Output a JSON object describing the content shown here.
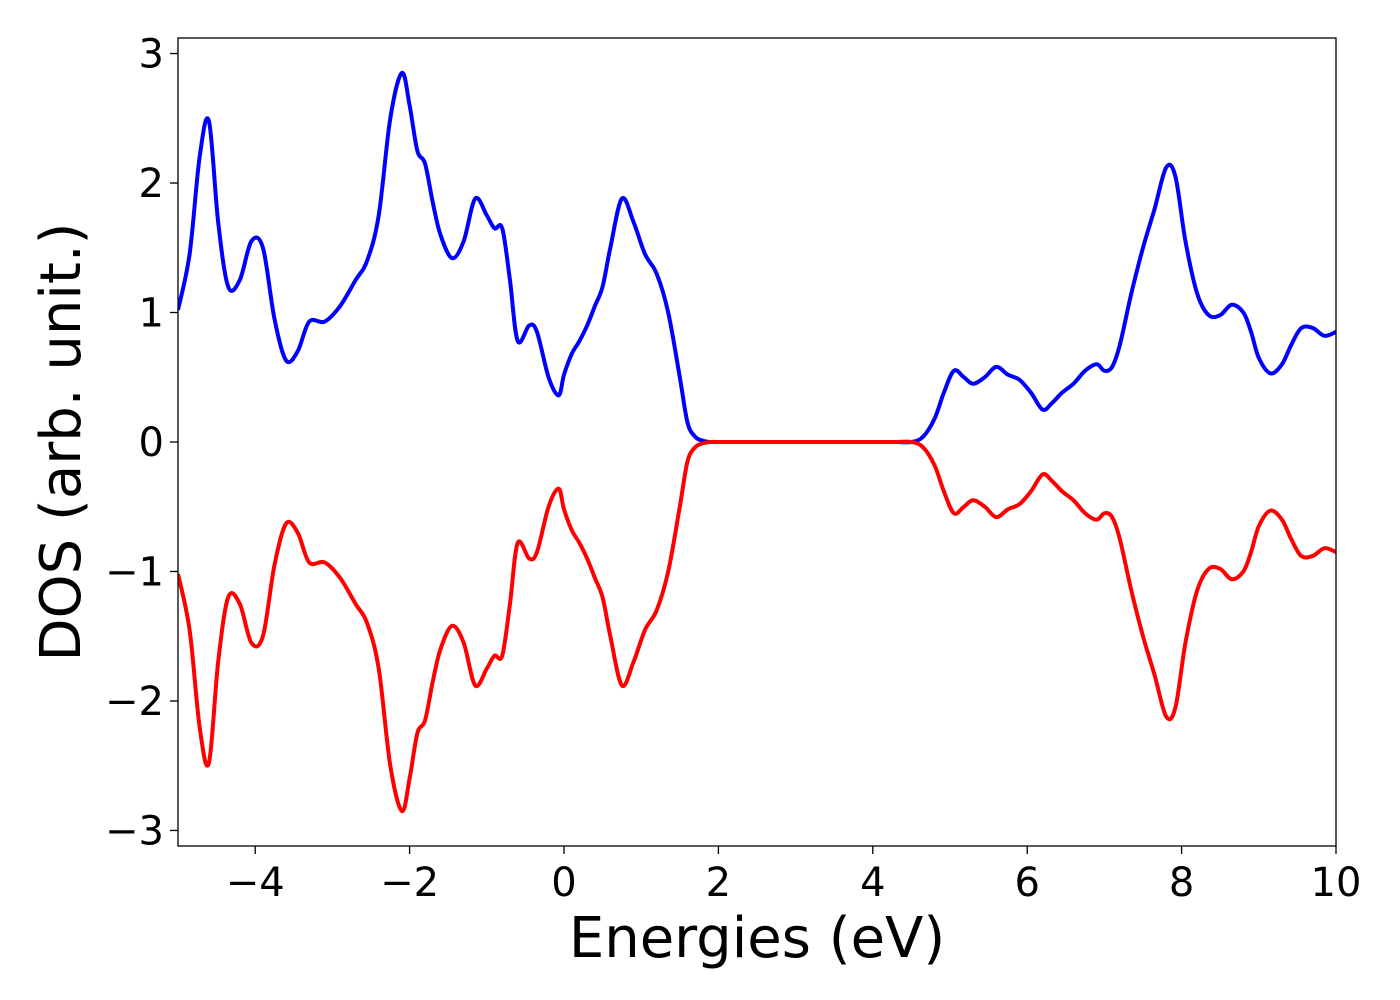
{
  "chart_data": {
    "type": "line",
    "title": "",
    "xlabel": "Energies (eV)",
    "ylabel": "DOS (arb. unit.)",
    "xlim": [
      -5,
      10
    ],
    "ylim": [
      -3.12,
      3.12
    ],
    "xticks": [
      -4,
      -2,
      0,
      2,
      4,
      6,
      8,
      10
    ],
    "xtick_labels": [
      "−4",
      "−2",
      "0",
      "2",
      "4",
      "6",
      "8",
      "10"
    ],
    "yticks": [
      -3,
      -2,
      -1,
      0,
      1,
      2,
      3
    ],
    "ytick_labels": [
      "−3",
      "−2",
      "−1",
      "0",
      "1",
      "2",
      "3"
    ],
    "grid": false,
    "legend": "none",
    "series": [
      {
        "color": "#0000ff",
        "x": [
          -5.0,
          -4.85,
          -4.72,
          -4.6,
          -4.48,
          -4.35,
          -4.2,
          -4.05,
          -3.9,
          -3.75,
          -3.6,
          -3.45,
          -3.3,
          -3.1,
          -2.9,
          -2.7,
          -2.55,
          -2.4,
          -2.25,
          -2.1,
          -2.0,
          -1.9,
          -1.8,
          -1.7,
          -1.6,
          -1.45,
          -1.3,
          -1.15,
          -1.0,
          -0.9,
          -0.8,
          -0.7,
          -0.6,
          -0.45,
          -0.35,
          -0.2,
          -0.07,
          0.0,
          0.1,
          0.2,
          0.3,
          0.4,
          0.5,
          0.6,
          0.75,
          0.9,
          1.05,
          1.2,
          1.35,
          1.5,
          1.6,
          1.7,
          1.8,
          1.9,
          2.0,
          2.1,
          2.2,
          2.3,
          2.4,
          2.5,
          2.6,
          2.8,
          3.0,
          3.5,
          4.0,
          4.3,
          4.5,
          4.65,
          4.8,
          4.92,
          5.05,
          5.18,
          5.3,
          5.45,
          5.6,
          5.75,
          5.9,
          6.05,
          6.2,
          6.32,
          6.45,
          6.6,
          6.75,
          6.9,
          7.0,
          7.1,
          7.2,
          7.35,
          7.5,
          7.65,
          7.8,
          7.92,
          8.05,
          8.2,
          8.35,
          8.5,
          8.65,
          8.8,
          8.9,
          9.0,
          9.15,
          9.3,
          9.42,
          9.55,
          9.7,
          9.85,
          10.0
        ],
        "y": [
          1.02,
          1.45,
          2.2,
          2.48,
          1.7,
          1.2,
          1.25,
          1.55,
          1.5,
          0.95,
          0.63,
          0.7,
          0.93,
          0.93,
          1.05,
          1.25,
          1.4,
          1.75,
          2.5,
          2.85,
          2.6,
          2.25,
          2.15,
          1.85,
          1.6,
          1.42,
          1.55,
          1.88,
          1.75,
          1.65,
          1.65,
          1.25,
          0.78,
          0.9,
          0.85,
          0.5,
          0.36,
          0.52,
          0.68,
          0.78,
          0.9,
          1.05,
          1.2,
          1.5,
          1.88,
          1.7,
          1.45,
          1.3,
          1.0,
          0.5,
          0.15,
          0.04,
          0.01,
          0.0,
          0.0,
          0.0,
          0.0,
          0.0,
          0.0,
          0.0,
          0.0,
          0.0,
          0.0,
          0.0,
          0.0,
          0.0,
          0.0,
          0.04,
          0.18,
          0.38,
          0.55,
          0.5,
          0.45,
          0.5,
          0.58,
          0.52,
          0.48,
          0.38,
          0.25,
          0.3,
          0.38,
          0.45,
          0.55,
          0.6,
          0.55,
          0.58,
          0.75,
          1.15,
          1.5,
          1.8,
          2.12,
          2.05,
          1.55,
          1.15,
          0.98,
          0.98,
          1.06,
          1.0,
          0.85,
          0.65,
          0.53,
          0.6,
          0.75,
          0.88,
          0.88,
          0.82,
          0.85
        ]
      },
      {
        "color": "#ff0000",
        "x": [
          -5.0,
          -4.85,
          -4.72,
          -4.6,
          -4.48,
          -4.35,
          -4.2,
          -4.05,
          -3.9,
          -3.75,
          -3.6,
          -3.45,
          -3.3,
          -3.1,
          -2.9,
          -2.7,
          -2.55,
          -2.4,
          -2.25,
          -2.1,
          -2.0,
          -1.9,
          -1.8,
          -1.7,
          -1.6,
          -1.45,
          -1.3,
          -1.15,
          -1.0,
          -0.9,
          -0.8,
          -0.7,
          -0.6,
          -0.45,
          -0.35,
          -0.2,
          -0.07,
          0.0,
          0.1,
          0.2,
          0.3,
          0.4,
          0.5,
          0.6,
          0.75,
          0.9,
          1.05,
          1.2,
          1.35,
          1.5,
          1.6,
          1.7,
          1.8,
          1.9,
          2.0,
          2.1,
          2.2,
          2.3,
          2.4,
          2.5,
          2.6,
          2.8,
          3.0,
          3.5,
          4.0,
          4.3,
          4.5,
          4.65,
          4.8,
          4.92,
          5.05,
          5.18,
          5.3,
          5.45,
          5.6,
          5.75,
          5.9,
          6.05,
          6.2,
          6.32,
          6.45,
          6.6,
          6.75,
          6.9,
          7.0,
          7.1,
          7.2,
          7.35,
          7.5,
          7.65,
          7.8,
          7.92,
          8.05,
          8.2,
          8.35,
          8.5,
          8.65,
          8.8,
          8.9,
          9.0,
          9.15,
          9.3,
          9.42,
          9.55,
          9.7,
          9.85,
          10.0
        ],
        "y": [
          -1.02,
          -1.45,
          -2.2,
          -2.48,
          -1.7,
          -1.2,
          -1.25,
          -1.55,
          -1.5,
          -0.95,
          -0.63,
          -0.7,
          -0.93,
          -0.93,
          -1.05,
          -1.25,
          -1.4,
          -1.75,
          -2.5,
          -2.85,
          -2.6,
          -2.25,
          -2.15,
          -1.85,
          -1.6,
          -1.42,
          -1.55,
          -1.88,
          -1.75,
          -1.65,
          -1.65,
          -1.25,
          -0.78,
          -0.9,
          -0.85,
          -0.5,
          -0.36,
          -0.52,
          -0.68,
          -0.78,
          -0.9,
          -1.05,
          -1.2,
          -1.5,
          -1.88,
          -1.7,
          -1.45,
          -1.3,
          -1.0,
          -0.5,
          -0.15,
          -0.04,
          -0.01,
          0.0,
          0.0,
          0.0,
          0.0,
          0.0,
          0.0,
          0.0,
          0.0,
          0.0,
          0.0,
          0.0,
          0.0,
          0.0,
          0.0,
          -0.04,
          -0.18,
          -0.38,
          -0.55,
          -0.5,
          -0.45,
          -0.5,
          -0.58,
          -0.52,
          -0.48,
          -0.38,
          -0.25,
          -0.3,
          -0.38,
          -0.45,
          -0.55,
          -0.6,
          -0.55,
          -0.58,
          -0.75,
          -1.15,
          -1.5,
          -1.8,
          -2.12,
          -2.05,
          -1.55,
          -1.15,
          -0.98,
          -0.98,
          -1.06,
          -1.0,
          -0.85,
          -0.65,
          -0.53,
          -0.6,
          -0.75,
          -0.88,
          -0.88,
          -0.82,
          -0.85
        ]
      }
    ]
  }
}
